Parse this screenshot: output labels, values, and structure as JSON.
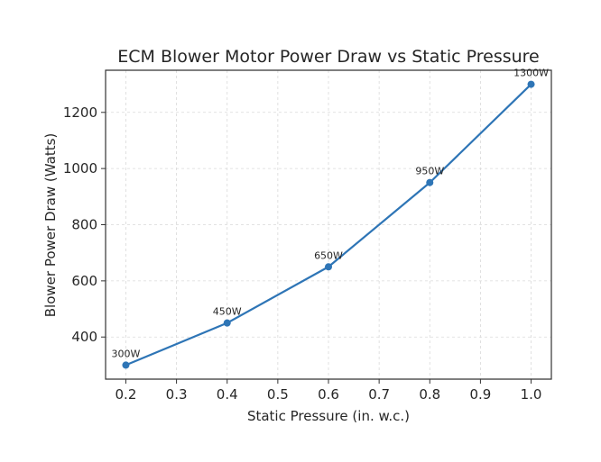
{
  "chart_data": {
    "type": "line",
    "title": "ECM Blower Motor Power Draw vs Static Pressure",
    "xlabel": "Static Pressure (in. w.c.)",
    "ylabel": "Blower Power Draw (Watts)",
    "x_ticks": [
      "0.2",
      "0.3",
      "0.4",
      "0.5",
      "0.6",
      "0.7",
      "0.8",
      "0.9",
      "1.0"
    ],
    "y_ticks": [
      "400",
      "600",
      "800",
      "1000",
      "1200"
    ],
    "xlim": [
      0.16,
      1.04
    ],
    "ylim": [
      250,
      1350
    ],
    "grid": true,
    "series": [
      {
        "x": [
          0.2,
          0.4,
          0.6,
          0.8,
          1.0
        ],
        "values": [
          300,
          450,
          650,
          950,
          1300
        ],
        "data_labels": [
          "300W",
          "450W",
          "650W",
          "950W",
          "1300W"
        ],
        "color": "#2e75b6"
      }
    ]
  }
}
